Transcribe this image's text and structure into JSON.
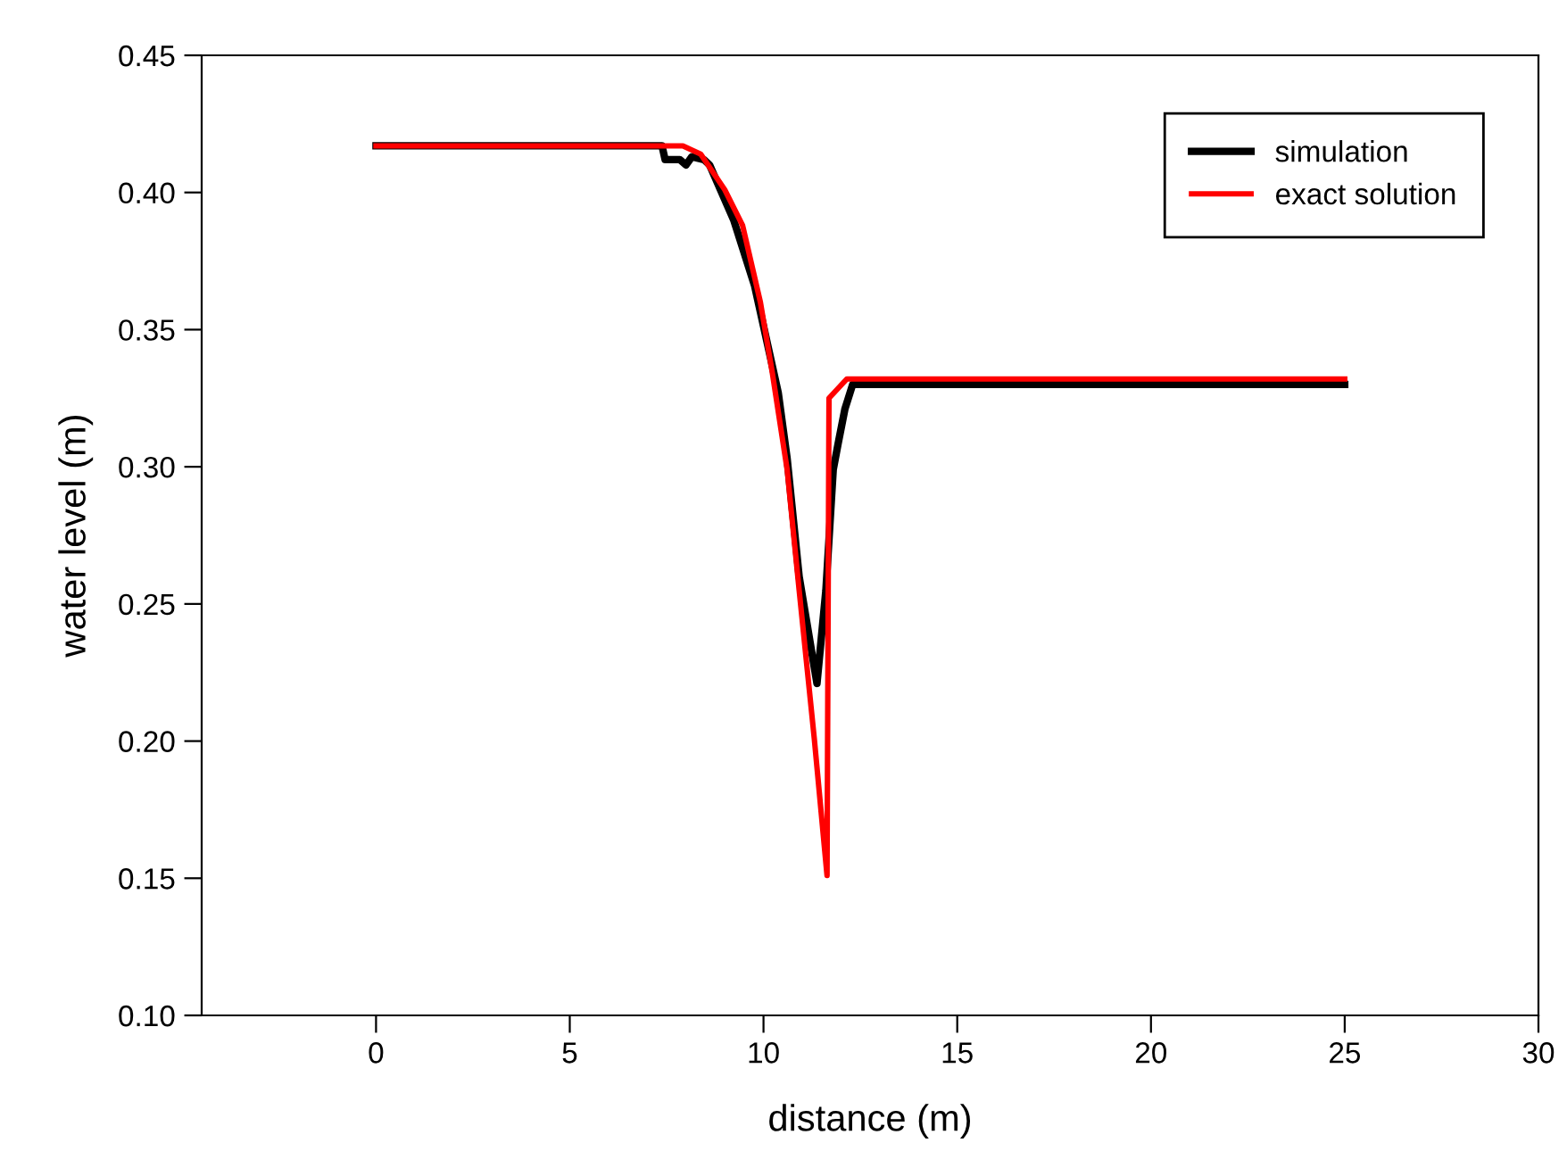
{
  "chart_data": {
    "type": "line",
    "xlabel": "distance (m)",
    "ylabel": "water level (m)",
    "xlim": [
      -4.5,
      30
    ],
    "xticks": [
      0,
      5,
      10,
      15,
      20,
      25,
      30
    ],
    "ylim": [
      0.1,
      0.45
    ],
    "yticks": [
      {
        "value": 0.1,
        "label": "0.10"
      },
      {
        "value": 0.15,
        "label": "0.15"
      },
      {
        "value": 0.2,
        "label": "0.20"
      },
      {
        "value": 0.25,
        "label": "0.25"
      },
      {
        "value": 0.3,
        "label": "0.30"
      },
      {
        "value": 0.35,
        "label": "0.35"
      },
      {
        "value": 0.4,
        "label": "0.40"
      },
      {
        "value": 0.45,
        "label": "0.45"
      }
    ],
    "grid": false,
    "legend": "top right",
    "marker": "none",
    "line_style": "solid",
    "series": [
      {
        "name": "simulation",
        "color": "#000000",
        "x": [
          0,
          7.38,
          7.46,
          7.84,
          8.0,
          8.15,
          8.46,
          8.61,
          9.23,
          9.77,
          10.38,
          10.61,
          10.92,
          11.38,
          11.61,
          11.8,
          11.92,
          12.1,
          12.3,
          25
        ],
        "values": [
          0.417,
          0.417,
          0.412,
          0.412,
          0.41,
          0.413,
          0.412,
          0.41,
          0.39,
          0.366,
          0.327,
          0.303,
          0.26,
          0.221,
          0.255,
          0.299,
          0.308,
          0.321,
          0.33,
          0.33
        ]
      },
      {
        "name": "exact solution",
        "color": "#ff0000",
        "x": [
          0,
          7.92,
          8.38,
          9.0,
          9.46,
          9.92,
          10.23,
          10.61,
          10.92,
          11.31,
          11.64,
          11.69,
          12.15,
          25
        ],
        "values": [
          0.417,
          0.417,
          0.414,
          0.401,
          0.388,
          0.36,
          0.334,
          0.299,
          0.255,
          0.201,
          0.151,
          0.325,
          0.332,
          0.332
        ]
      }
    ]
  }
}
